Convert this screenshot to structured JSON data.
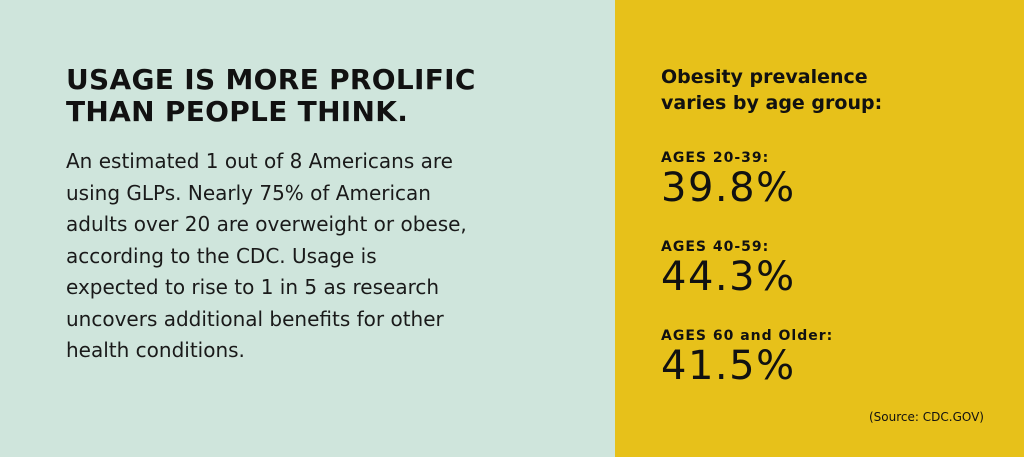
{
  "left": {
    "heading": [
      "USAGE IS MORE PROLIFIC",
      "THAN PEOPLE THINK."
    ],
    "paragraph": [
      "An estimated 1 out of 8 Americans are",
      "using GLPs. Nearly 75% of American",
      "adults over 20 are overweight or obese,",
      "according to the CDC. Usage is",
      "expected to rise to 1 in 5 as research",
      "uncovers additional benefits for other",
      "health conditions."
    ]
  },
  "right": {
    "title": [
      "Obesity prevalence",
      "varies by age group:"
    ],
    "stats": [
      {
        "label": "AGES 20-39:",
        "value": "39.8%"
      },
      {
        "label": "AGES 40-59:",
        "value": "44.3%"
      },
      {
        "label": "AGES 60 and Older:",
        "value": "41.5%"
      }
    ],
    "source": "(Source: CDC.GOV)"
  }
}
